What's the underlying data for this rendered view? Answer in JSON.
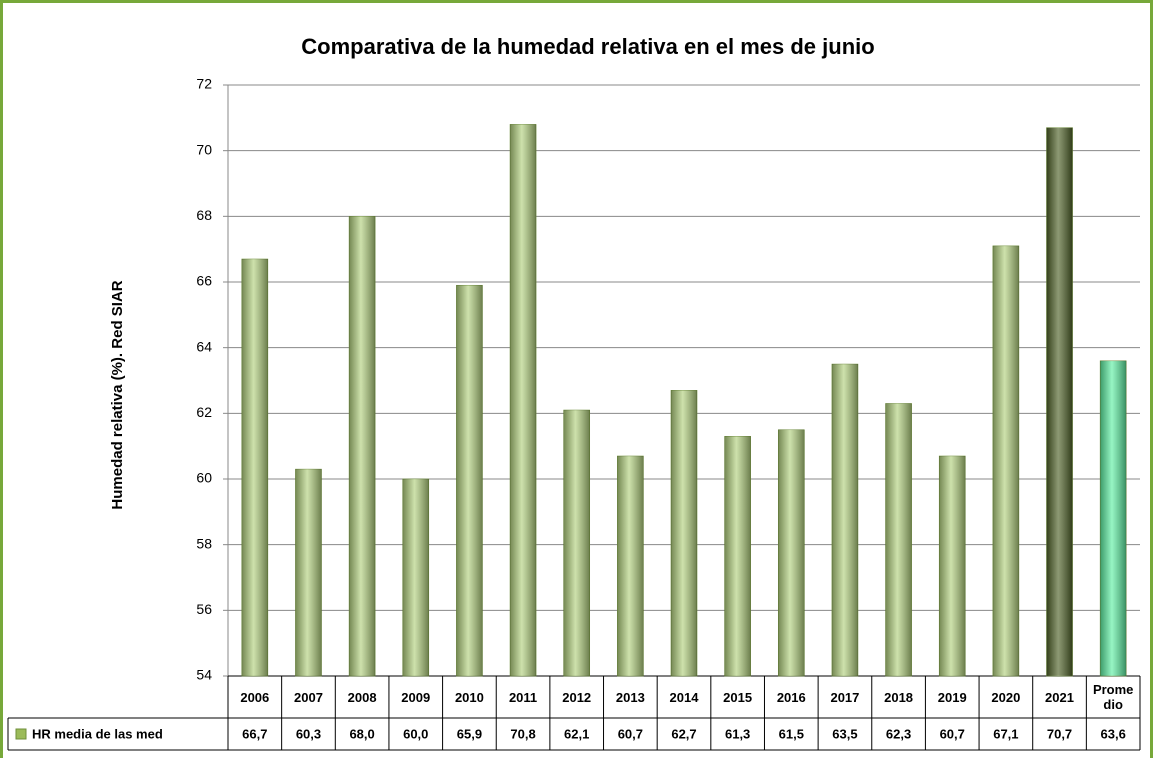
{
  "chart_data": {
    "type": "bar",
    "title": "Comparativa de la humedad relativa en el mes de  junio",
    "y_label": "Humedad relativa (%). Red SIAR",
    "categories": [
      "2006",
      "2007",
      "2008",
      "2009",
      "2010",
      "2011",
      "2012",
      "2013",
      "2014",
      "2015",
      "2016",
      "2017",
      "2018",
      "2019",
      "2020",
      "2021",
      "Promedio"
    ],
    "series": [
      {
        "name": "HR media de las med",
        "color": "#9bbb59",
        "colors": [
          "#b3d17f",
          "#b3d17f",
          "#b3d17f",
          "#b3d17f",
          "#b3d17f",
          "#b3d17f",
          "#b3d17f",
          "#b3d17f",
          "#b3d17f",
          "#b3d17f",
          "#b3d17f",
          "#b3d17f",
          "#b3d17f",
          "#b3d17f",
          "#b3d17f",
          "#4f6228",
          "#5ef0a4"
        ],
        "values": [
          66.7,
          60.3,
          68.0,
          60.0,
          65.9,
          70.8,
          62.1,
          60.7,
          62.7,
          61.3,
          61.5,
          63.5,
          62.3,
          60.7,
          67.1,
          70.7,
          63.6
        ],
        "value_labels": [
          "66,7",
          "60,3",
          "68,0",
          "60,0",
          "65,9",
          "70,8",
          "62,1",
          "60,7",
          "62,7",
          "61,3",
          "61,5",
          "63,5",
          "62,3",
          "60,7",
          "67,1",
          "70,7",
          "63,6"
        ]
      }
    ],
    "ylim": [
      54,
      72
    ],
    "yticks": [
      54,
      56,
      58,
      60,
      62,
      64,
      66,
      68,
      70,
      72
    ],
    "grid": true
  }
}
